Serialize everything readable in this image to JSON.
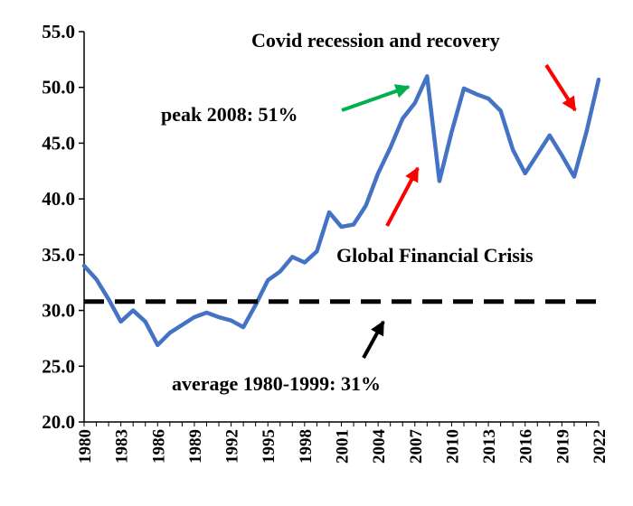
{
  "chart_data": {
    "type": "line",
    "title": "",
    "xlabel": "",
    "ylabel": "",
    "ylim": [
      20,
      55
    ],
    "xlim": [
      1980,
      2022
    ],
    "yticks": [
      "20.0",
      "25.0",
      "30.0",
      "35.0",
      "40.0",
      "45.0",
      "50.0",
      "55.0"
    ],
    "xticks": [
      "1980",
      "1983",
      "1986",
      "1989",
      "1992",
      "1995",
      "1998",
      "2001",
      "2004",
      "2007",
      "2010",
      "2013",
      "2016",
      "2019",
      "2022"
    ],
    "grid": false,
    "series": [
      {
        "color": "#4472C4",
        "x": [
          1980,
          1981,
          1982,
          1983,
          1984,
          1985,
          1986,
          1987,
          1988,
          1989,
          1990,
          1991,
          1992,
          1993,
          1994,
          1995,
          1996,
          1997,
          1998,
          1999,
          2000,
          2001,
          2002,
          2003,
          2004,
          2005,
          2006,
          2007,
          2008,
          2009,
          2010,
          2011,
          2012,
          2013,
          2014,
          2015,
          2016,
          2017,
          2018,
          2019,
          2020,
          2021,
          2022
        ],
        "y": [
          34.0,
          32.8,
          31.0,
          29.0,
          30.0,
          29.0,
          26.9,
          28.0,
          28.7,
          29.4,
          29.8,
          29.4,
          29.1,
          28.5,
          30.5,
          32.7,
          33.5,
          34.8,
          34.3,
          35.3,
          38.8,
          37.5,
          37.7,
          39.4,
          42.3,
          44.6,
          47.2,
          48.6,
          51.0,
          41.6,
          46.0,
          49.9,
          49.4,
          49.0,
          47.9,
          44.4,
          42.3,
          44.0,
          45.7,
          43.9,
          42.0,
          46.0,
          50.7
        ]
      },
      {
        "style": "dashed",
        "color": "#000000",
        "x": [
          1980,
          2022
        ],
        "y": [
          30.8,
          30.8
        ]
      }
    ],
    "annotations": [
      {
        "text": "Covid recession and recovery",
        "arrow_color": "#ff0000"
      },
      {
        "text": "peak 2008:  51%",
        "arrow_color": "#00b050"
      },
      {
        "text": "Global  Financial Crisis",
        "arrow_color": "#ff0000"
      },
      {
        "text": "average 1980-1999:  31%",
        "arrow_color": "#000000"
      }
    ]
  }
}
